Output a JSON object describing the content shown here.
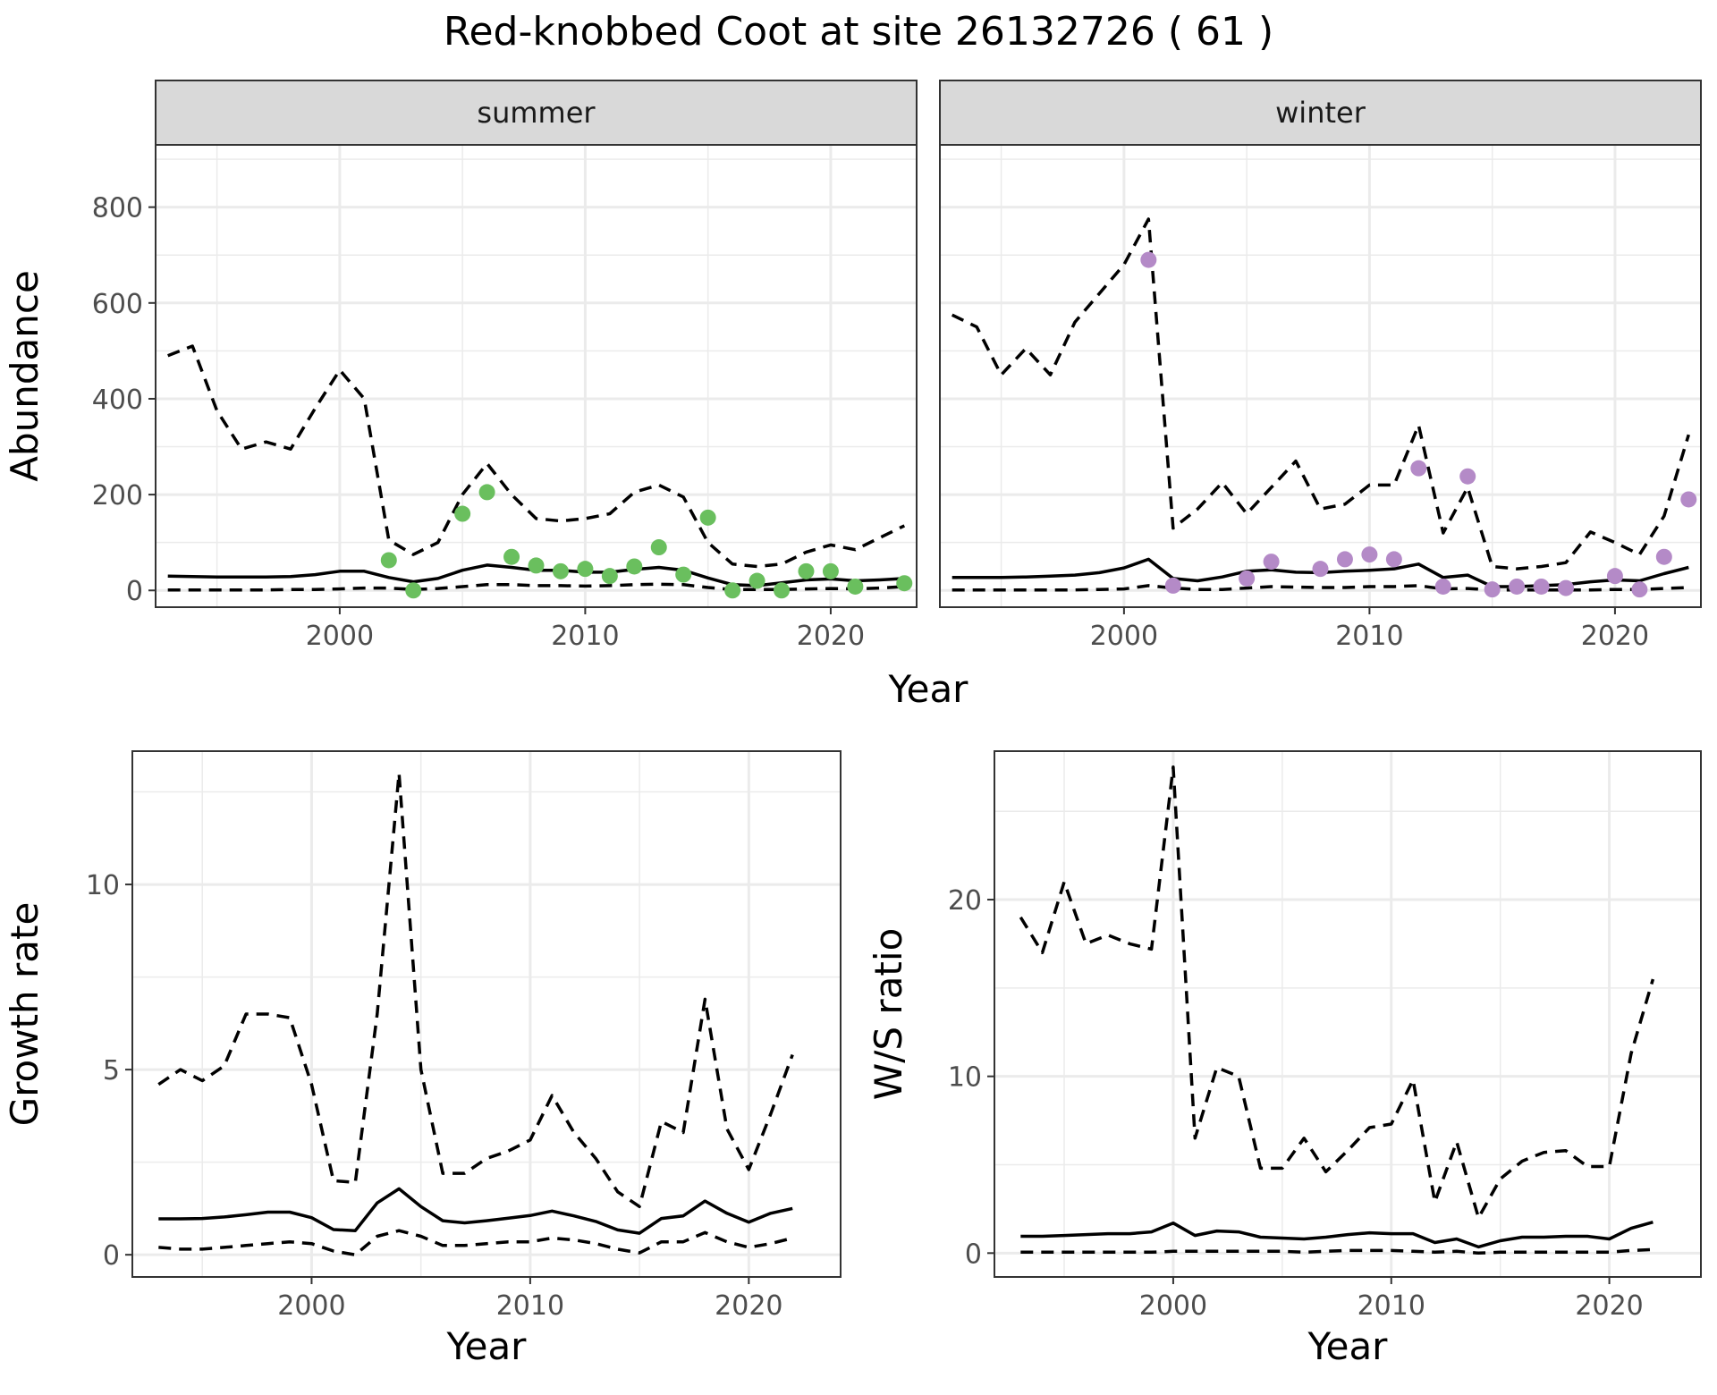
{
  "title": "Red-knobbed Coot at site 26132726 ( 61 )",
  "colors": {
    "summer_points": "#6abf5e",
    "winter_points": "#b48ac7",
    "strip_fill": "#d9d9d9"
  },
  "chart_data": [
    {
      "type": "line",
      "panel": "summer",
      "strip_label": "summer",
      "xlabel": "Year",
      "ylabel": "Abundance",
      "xlim": [
        1992.5,
        2023.5
      ],
      "ylim": [
        -35,
        930
      ],
      "xticks": [
        2000,
        2010,
        2020
      ],
      "yticks": [
        0,
        200,
        400,
        600,
        800
      ],
      "x": [
        1993,
        1994,
        1995,
        1996,
        1997,
        1998,
        1999,
        2000,
        2001,
        2002,
        2003,
        2004,
        2005,
        2006,
        2007,
        2008,
        2009,
        2010,
        2011,
        2012,
        2013,
        2014,
        2015,
        2016,
        2017,
        2018,
        2019,
        2020,
        2021,
        2022,
        2023
      ],
      "series": [
        {
          "name": "",
          "style": "solid",
          "values": [
            30,
            29,
            28,
            28,
            28,
            29,
            33,
            40,
            40,
            27,
            18,
            25,
            42,
            53,
            48,
            42,
            42,
            38,
            38,
            44,
            48,
            42,
            26,
            12,
            10,
            16,
            22,
            24,
            20,
            22,
            25
          ]
        },
        {
          "name": "",
          "style": "dashed",
          "values": [
            490,
            510,
            375,
            295,
            310,
            295,
            380,
            460,
            400,
            105,
            75,
            100,
            200,
            265,
            200,
            150,
            145,
            150,
            160,
            205,
            220,
            195,
            100,
            55,
            50,
            55,
            80,
            95,
            85,
            110,
            135
          ]
        },
        {
          "name": "",
          "style": "dashed",
          "values": [
            1,
            1,
            1,
            1,
            1,
            2,
            2,
            3,
            5,
            5,
            2,
            4,
            8,
            12,
            12,
            10,
            10,
            9,
            10,
            12,
            13,
            12,
            6,
            2,
            2,
            2,
            3,
            4,
            3,
            5,
            8
          ]
        }
      ],
      "points": {
        "x": [
          2002,
          2003,
          2005,
          2006,
          2007,
          2008,
          2009,
          2010,
          2011,
          2012,
          2013,
          2014,
          2015,
          2016,
          2017,
          2018,
          2019,
          2020,
          2021,
          2023
        ],
        "y": [
          63,
          0,
          160,
          205,
          70,
          52,
          40,
          45,
          30,
          50,
          90,
          33,
          152,
          0,
          20,
          0,
          40,
          40,
          8,
          15
        ]
      }
    },
    {
      "type": "line",
      "panel": "winter",
      "strip_label": "winter",
      "xlabel": "Year",
      "ylabel": "",
      "xlim": [
        1992.5,
        2023.5
      ],
      "ylim": [
        -35,
        930
      ],
      "xticks": [
        2000,
        2010,
        2020
      ],
      "yticks": [],
      "x": [
        1993,
        1994,
        1995,
        1996,
        1997,
        1998,
        1999,
        2000,
        2001,
        2002,
        2003,
        2004,
        2005,
        2006,
        2007,
        2008,
        2009,
        2010,
        2011,
        2012,
        2013,
        2014,
        2015,
        2016,
        2017,
        2018,
        2019,
        2020,
        2021,
        2022,
        2023
      ],
      "series": [
        {
          "name": "",
          "style": "solid",
          "values": [
            27,
            27,
            27,
            28,
            30,
            32,
            37,
            47,
            65,
            25,
            20,
            28,
            40,
            43,
            38,
            37,
            40,
            42,
            45,
            55,
            27,
            32,
            8,
            8,
            10,
            12,
            18,
            22,
            20,
            35,
            48
          ]
        },
        {
          "name": "",
          "style": "dashed",
          "values": [
            575,
            550,
            450,
            505,
            450,
            560,
            620,
            680,
            775,
            130,
            170,
            225,
            160,
            215,
            270,
            170,
            180,
            220,
            220,
            345,
            120,
            215,
            50,
            45,
            50,
            58,
            122,
            100,
            75,
            155,
            325
          ]
        },
        {
          "name": "",
          "style": "dashed",
          "values": [
            1,
            1,
            1,
            1,
            1,
            1,
            2,
            3,
            10,
            5,
            2,
            2,
            5,
            8,
            7,
            6,
            6,
            8,
            8,
            10,
            3,
            4,
            1,
            1,
            1,
            1,
            1,
            2,
            2,
            4,
            6
          ]
        }
      ],
      "points": {
        "x": [
          2001,
          2002,
          2005,
          2006,
          2008,
          2009,
          2010,
          2011,
          2012,
          2013,
          2014,
          2015,
          2016,
          2017,
          2018,
          2020,
          2021,
          2022,
          2023
        ],
        "y": [
          690,
          10,
          25,
          60,
          45,
          65,
          75,
          65,
          255,
          8,
          238,
          2,
          8,
          8,
          5,
          30,
          2,
          70,
          190
        ]
      }
    },
    {
      "type": "line",
      "panel": "growth",
      "xlabel": "Year",
      "ylabel": "Growth rate",
      "xlim": [
        1991.8,
        2024.2
      ],
      "ylim": [
        -0.6,
        13.6
      ],
      "xticks": [
        2000,
        2010,
        2020
      ],
      "yticks": [
        0,
        5,
        10
      ],
      "x": [
        1993,
        1994,
        1995,
        1996,
        1997,
        1998,
        1999,
        2000,
        2001,
        2002,
        2003,
        2004,
        2005,
        2006,
        2007,
        2008,
        2009,
        2010,
        2011,
        2012,
        2013,
        2014,
        2015,
        2016,
        2017,
        2018,
        2019,
        2020,
        2021,
        2022
      ],
      "series": [
        {
          "name": "",
          "style": "solid",
          "values": [
            0.97,
            0.97,
            0.98,
            1.02,
            1.08,
            1.15,
            1.15,
            1.0,
            0.68,
            0.65,
            1.4,
            1.78,
            1.3,
            0.92,
            0.86,
            0.92,
            0.99,
            1.06,
            1.18,
            1.05,
            0.9,
            0.67,
            0.58,
            0.98,
            1.05,
            1.45,
            1.12,
            0.88,
            1.12,
            1.25
          ]
        },
        {
          "name": "",
          "style": "dashed",
          "values": [
            4.6,
            5.0,
            4.7,
            5.1,
            6.5,
            6.5,
            6.4,
            4.6,
            2.0,
            1.95,
            6.5,
            13.0,
            5.0,
            2.2,
            2.2,
            2.6,
            2.8,
            3.1,
            4.3,
            3.3,
            2.6,
            1.7,
            1.3,
            3.6,
            3.3,
            6.9,
            3.4,
            2.3,
            3.8,
            5.4
          ]
        },
        {
          "name": "",
          "style": "dashed",
          "values": [
            0.2,
            0.15,
            0.15,
            0.2,
            0.25,
            0.3,
            0.35,
            0.3,
            0.1,
            0.0,
            0.5,
            0.65,
            0.5,
            0.25,
            0.25,
            0.3,
            0.35,
            0.35,
            0.45,
            0.4,
            0.3,
            0.15,
            0.05,
            0.35,
            0.35,
            0.6,
            0.35,
            0.2,
            0.3,
            0.45
          ]
        }
      ]
    },
    {
      "type": "line",
      "panel": "ratio",
      "xlabel": "Year",
      "ylabel": "W/S ratio",
      "xlim": [
        1991.8,
        2024.2
      ],
      "ylim": [
        -1.35,
        28.4
      ],
      "xticks": [
        2000,
        2010,
        2020
      ],
      "yticks": [
        0,
        10,
        20
      ],
      "x": [
        1993,
        1994,
        1995,
        1996,
        1997,
        1998,
        1999,
        2000,
        2001,
        2002,
        2003,
        2004,
        2005,
        2006,
        2007,
        2008,
        2009,
        2010,
        2011,
        2012,
        2013,
        2014,
        2015,
        2016,
        2017,
        2018,
        2019,
        2020,
        2021,
        2022
      ],
      "series": [
        {
          "name": "",
          "style": "solid",
          "values": [
            0.95,
            0.95,
            1.0,
            1.05,
            1.1,
            1.1,
            1.2,
            1.7,
            1.0,
            1.25,
            1.2,
            0.9,
            0.85,
            0.8,
            0.9,
            1.05,
            1.15,
            1.1,
            1.1,
            0.6,
            0.8,
            0.35,
            0.7,
            0.9,
            0.9,
            0.95,
            0.95,
            0.8,
            1.4,
            1.75
          ]
        },
        {
          "name": "",
          "style": "dashed",
          "values": [
            19,
            17,
            21,
            17.5,
            18,
            17.5,
            17.2,
            27.5,
            6.5,
            10.5,
            10,
            4.8,
            4.8,
            6.5,
            4.6,
            5.8,
            7.1,
            7.3,
            9.8,
            2.9,
            6.3,
            2.0,
            4.2,
            5.2,
            5.7,
            5.8,
            4.9,
            4.9,
            11.3,
            15.5
          ]
        },
        {
          "name": "",
          "style": "dashed",
          "values": [
            0.05,
            0.05,
            0.05,
            0.05,
            0.05,
            0.05,
            0.05,
            0.1,
            0.1,
            0.1,
            0.1,
            0.1,
            0.1,
            0.05,
            0.1,
            0.15,
            0.15,
            0.15,
            0.1,
            0.05,
            0.1,
            0.0,
            0.05,
            0.05,
            0.05,
            0.05,
            0.05,
            0.05,
            0.15,
            0.2
          ]
        }
      ]
    }
  ]
}
